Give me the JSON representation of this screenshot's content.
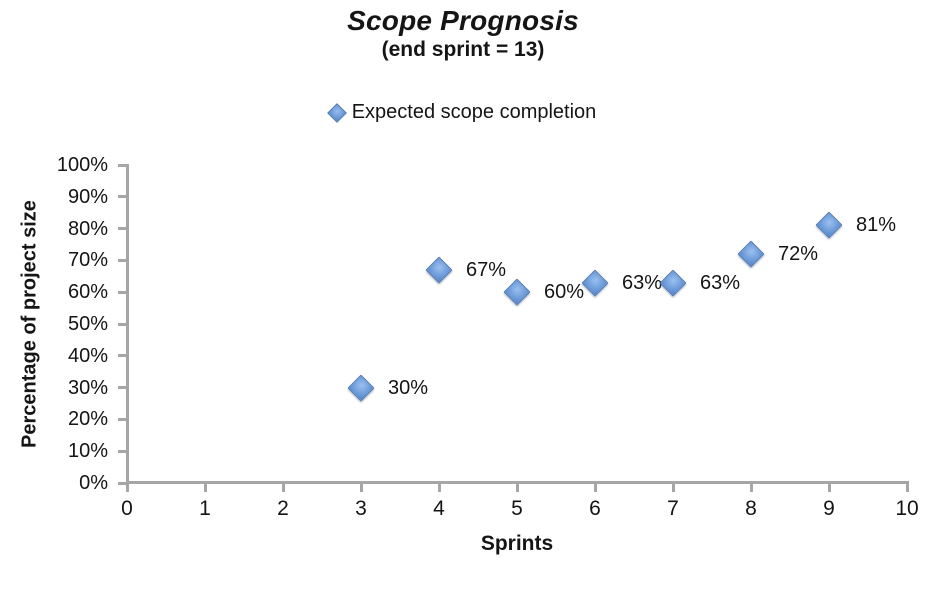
{
  "chart_data": {
    "type": "scatter",
    "title": "Scope Prognosis",
    "subtitle": "(end sprint = 13)",
    "xlabel": "Sprints",
    "ylabel": "Percentage of project size",
    "xlim": [
      0,
      10
    ],
    "ylim": [
      0,
      100
    ],
    "x_ticks": [
      0,
      1,
      2,
      3,
      4,
      5,
      6,
      7,
      8,
      9,
      10
    ],
    "y_ticks": [
      0,
      10,
      20,
      30,
      40,
      50,
      60,
      70,
      80,
      90,
      100
    ],
    "y_tick_suffix": "%",
    "grid": false,
    "legend_position": "top-center",
    "axis_color": "#a6a6a6",
    "marker": "diamond",
    "marker_color": "#6f9fdd",
    "series": [
      {
        "name": "Expected scope completion",
        "points": [
          {
            "x": 3,
            "y": 30,
            "label": "30%"
          },
          {
            "x": 4,
            "y": 67,
            "label": "67%"
          },
          {
            "x": 5,
            "y": 60,
            "label": "60%"
          },
          {
            "x": 6,
            "y": 63,
            "label": "63%"
          },
          {
            "x": 7,
            "y": 63,
            "label": "63%"
          },
          {
            "x": 8,
            "y": 72,
            "label": "72%"
          },
          {
            "x": 9,
            "y": 81,
            "label": "81%"
          }
        ]
      }
    ]
  }
}
